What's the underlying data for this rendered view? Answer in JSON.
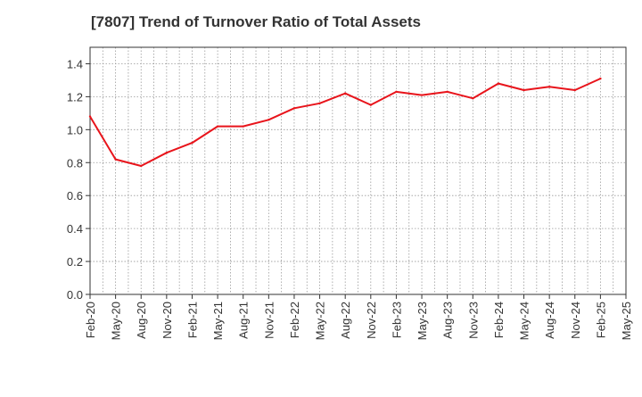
{
  "chart_data": {
    "type": "line",
    "title": "[7807]  Trend of Turnover Ratio of Total Assets",
    "xlabel": "",
    "ylabel": "",
    "x": [
      "Feb-20",
      "May-20",
      "Aug-20",
      "Nov-20",
      "Feb-21",
      "May-21",
      "Aug-21",
      "Nov-21",
      "Feb-22",
      "May-22",
      "Aug-22",
      "Nov-22",
      "Feb-23",
      "May-23",
      "Aug-23",
      "Nov-23",
      "Feb-24",
      "May-24",
      "Aug-24",
      "Nov-24",
      "Feb-25",
      "May-25"
    ],
    "series": [
      {
        "name": "",
        "color": "#e8141b",
        "values": [
          1.08,
          0.82,
          0.78,
          0.86,
          0.92,
          1.02,
          1.02,
          1.06,
          1.13,
          1.16,
          1.22,
          1.15,
          1.23,
          1.21,
          1.23,
          1.19,
          1.28,
          1.24,
          1.26,
          1.24,
          1.31,
          null
        ]
      }
    ],
    "y_ticks": [
      "0.0",
      "0.2",
      "0.4",
      "0.6",
      "0.8",
      "1.0",
      "1.2",
      "1.4"
    ],
    "ylim": [
      0,
      1.5
    ],
    "grid": true,
    "grid_style": "dotted",
    "legend": "none"
  }
}
